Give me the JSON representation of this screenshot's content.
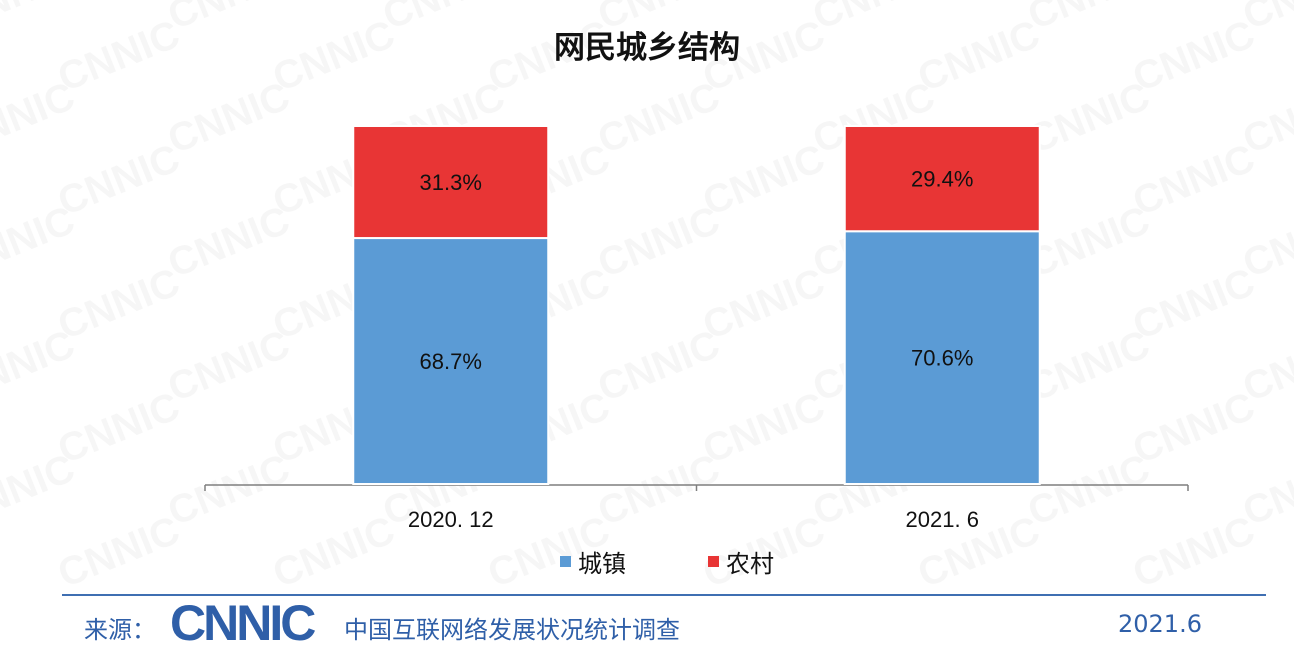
{
  "title": "网民城乡结构",
  "watermark_text": "CNNIC",
  "chart_data": {
    "type": "bar",
    "stacked": true,
    "percent": true,
    "categories": [
      "2020. 12",
      "2021. 6"
    ],
    "series": [
      {
        "name": "城镇",
        "values": [
          68.7,
          70.6
        ],
        "labels": [
          "68.7%",
          "70.6%"
        ],
        "color": "#5b9bd5"
      },
      {
        "name": "农村",
        "values": [
          31.3,
          29.4
        ],
        "labels": [
          "31.3%",
          "29.4%"
        ],
        "color": "#e83535"
      }
    ],
    "ylim": [
      0,
      100
    ],
    "grid": false,
    "legend_position": "bottom"
  },
  "footer": {
    "source_label": "来源：",
    "logo_text": "CNNIC",
    "org_name": "中国互联网络发展状况统计调查",
    "date": "2021.6",
    "accent_color": "#2f5fa8"
  }
}
